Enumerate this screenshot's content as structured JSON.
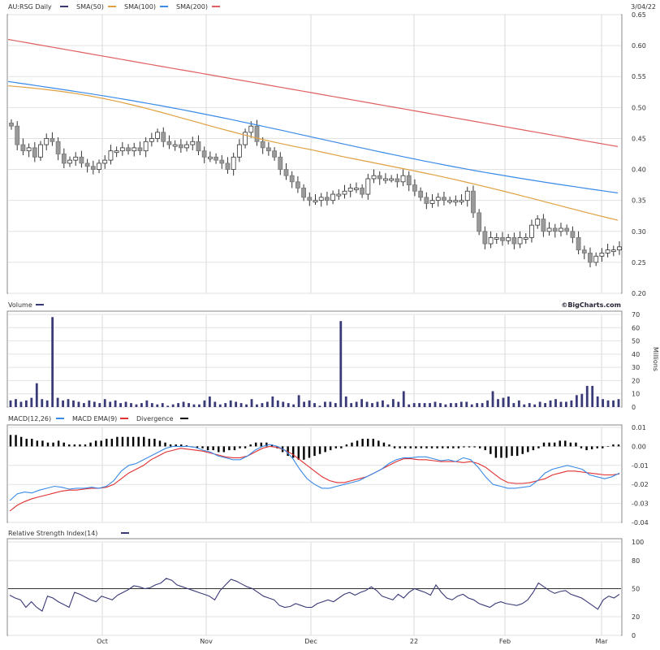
{
  "header": {
    "date": "3/04/22"
  },
  "legend_price": [
    {
      "label": "AU:RSG Daily",
      "color": "#3a3a78"
    },
    {
      "label": "SMA(50)",
      "color": "#e0a040"
    },
    {
      "label": "SMA(100)",
      "color": "#3a8ae8"
    },
    {
      "label": "SMA(200)",
      "color": "#e06060"
    }
  ],
  "legend_volume": [
    {
      "label": "Volume",
      "color": "#3a3a78"
    }
  ],
  "watermark": "©BigCharts.com",
  "legend_macd": [
    {
      "label": "MACD(12,26)",
      "color": "#3a8ae8"
    },
    {
      "label": "MACD EMA(9)",
      "color": "#e03030"
    },
    {
      "label": "Divergence",
      "color": "#000000"
    }
  ],
  "legend_rsi": [
    {
      "label": "Relative Strength Index(14)",
      "color": "#3a3a78"
    }
  ],
  "x_labels": [
    "Oct",
    "Nov",
    "Dec",
    "22",
    "Feb",
    "Mar"
  ],
  "chart_data": [
    {
      "type": "candlestick",
      "title": "AU:RSG Daily",
      "ylim": [
        0.2,
        0.65
      ],
      "yticks": [
        "0.65",
        "0.60",
        "0.55",
        "0.50",
        "0.45",
        "0.40",
        "0.35",
        "0.30",
        "0.25",
        "0.20"
      ],
      "close": [
        0.47,
        0.44,
        0.43,
        0.435,
        0.42,
        0.44,
        0.45,
        0.445,
        0.425,
        0.41,
        0.415,
        0.42,
        0.41,
        0.405,
        0.4,
        0.41,
        0.415,
        0.43,
        0.43,
        0.435,
        0.43,
        0.435,
        0.43,
        0.445,
        0.45,
        0.46,
        0.445,
        0.44,
        0.44,
        0.435,
        0.44,
        0.445,
        0.43,
        0.42,
        0.42,
        0.415,
        0.41,
        0.4,
        0.42,
        0.44,
        0.46,
        0.47,
        0.445,
        0.435,
        0.43,
        0.42,
        0.4,
        0.39,
        0.38,
        0.37,
        0.355,
        0.35,
        0.35,
        0.355,
        0.35,
        0.36,
        0.36,
        0.365,
        0.37,
        0.37,
        0.36,
        0.385,
        0.39,
        0.385,
        0.385,
        0.385,
        0.38,
        0.39,
        0.375,
        0.365,
        0.355,
        0.345,
        0.35,
        0.355,
        0.35,
        0.35,
        0.35,
        0.35,
        0.365,
        0.33,
        0.3,
        0.28,
        0.29,
        0.29,
        0.285,
        0.29,
        0.28,
        0.29,
        0.29,
        0.31,
        0.32,
        0.3,
        0.305,
        0.3,
        0.305,
        0.3,
        0.29,
        0.27,
        0.265,
        0.25,
        0.26,
        0.265,
        0.27,
        0.27,
        0.275
      ],
      "series": [
        {
          "name": "SMA(50)",
          "start": 0.535,
          "end": 0.318
        },
        {
          "name": "SMA(100)",
          "start": 0.542,
          "end": 0.362
        },
        {
          "name": "SMA(200)",
          "start": 0.61,
          "end": 0.437
        }
      ]
    },
    {
      "type": "bar",
      "title": "Volume",
      "ylabel": "Millions",
      "ylim": [
        0,
        70
      ],
      "yticks": [
        "70",
        "60",
        "50",
        "40",
        "30",
        "20",
        "10",
        "0"
      ],
      "values": [
        5,
        6,
        4,
        5,
        7,
        18,
        6,
        5,
        68,
        7,
        5,
        6,
        5,
        4,
        3,
        5,
        4,
        3,
        6,
        4,
        5,
        3,
        4,
        3,
        2,
        3,
        5,
        3,
        2,
        3,
        1,
        2,
        3,
        4,
        3,
        2,
        2,
        5,
        8,
        4,
        2,
        3,
        5,
        4,
        3,
        2,
        6,
        2,
        3,
        4,
        8,
        5,
        4,
        3,
        2,
        9,
        4,
        5,
        3,
        1,
        4,
        4,
        3,
        65,
        8,
        3,
        4,
        6,
        4,
        3,
        4,
        5,
        2,
        6,
        4,
        12,
        2,
        3,
        3,
        3,
        3,
        4,
        3,
        2,
        3,
        3,
        4,
        4,
        2,
        3,
        3,
        5,
        12,
        6,
        7,
        8,
        3,
        5,
        2,
        3,
        2,
        4,
        3,
        5,
        6,
        4,
        4,
        5,
        9,
        10,
        16,
        16,
        8,
        6,
        5,
        5,
        6
      ]
    },
    {
      "type": "line",
      "title": "MACD(12,26)",
      "ylim": [
        -0.04,
        0.01
      ],
      "yticks": [
        "0.01",
        "0.00",
        "-0.01",
        "-0.02",
        "-0.03",
        "-0.04"
      ],
      "macd": [
        -0.0285,
        -0.025,
        -0.024,
        -0.0245,
        -0.023,
        -0.022,
        -0.021,
        -0.0215,
        -0.0225,
        -0.022,
        -0.022,
        -0.0215,
        -0.022,
        -0.021,
        -0.018,
        -0.013,
        -0.01,
        -0.009,
        -0.007,
        -0.005,
        -0.003,
        -0.001,
        0.0,
        0.0,
        0.0,
        -0.0005,
        -0.002,
        -0.003,
        -0.005,
        -0.006,
        -0.007,
        -0.007,
        -0.005,
        -0.002,
        0.0,
        0.001,
        0.0,
        -0.002,
        -0.006,
        -0.012,
        -0.017,
        -0.02,
        -0.022,
        -0.022,
        -0.021,
        -0.02,
        -0.019,
        -0.018,
        -0.016,
        -0.014,
        -0.012,
        -0.009,
        -0.007,
        -0.006,
        -0.006,
        -0.0055,
        -0.0055,
        -0.0065,
        -0.0075,
        -0.007,
        -0.008,
        -0.006,
        -0.007,
        -0.011,
        -0.016,
        -0.02,
        -0.021,
        -0.022,
        -0.022,
        -0.0215,
        -0.021,
        -0.018,
        -0.014,
        -0.012,
        -0.011,
        -0.01,
        -0.011,
        -0.012,
        -0.015,
        -0.016,
        -0.017,
        -0.016,
        -0.014
      ],
      "signal": [
        -0.034,
        -0.031,
        -0.029,
        -0.0275,
        -0.0265,
        -0.0255,
        -0.0245,
        -0.0235,
        -0.023,
        -0.023,
        -0.0225,
        -0.022,
        -0.022,
        -0.0215,
        -0.02,
        -0.017,
        -0.014,
        -0.012,
        -0.01,
        -0.007,
        -0.005,
        -0.003,
        -0.002,
        -0.001,
        -0.0015,
        -0.002,
        -0.0025,
        -0.0035,
        -0.0045,
        -0.0055,
        -0.006,
        -0.006,
        -0.005,
        -0.003,
        -0.001,
        0.0,
        -0.0005,
        -0.002,
        -0.004,
        -0.007,
        -0.01,
        -0.013,
        -0.016,
        -0.018,
        -0.019,
        -0.019,
        -0.018,
        -0.017,
        -0.016,
        -0.014,
        -0.012,
        -0.01,
        -0.008,
        -0.0065,
        -0.0065,
        -0.007,
        -0.007,
        -0.0075,
        -0.008,
        -0.008,
        -0.008,
        -0.0085,
        -0.008,
        -0.009,
        -0.011,
        -0.014,
        -0.017,
        -0.019,
        -0.0195,
        -0.0195,
        -0.019,
        -0.018,
        -0.017,
        -0.015,
        -0.014,
        -0.013,
        -0.013,
        -0.0135,
        -0.014,
        -0.0145,
        -0.015,
        -0.015,
        -0.0145
      ],
      "divergence": [
        0.006,
        0.006,
        0.005,
        0.004,
        0.004,
        0.003,
        0.003,
        0.002,
        0.002,
        0.003,
        0.002,
        0.001,
        0.001,
        0.001,
        0.001,
        0.002,
        0.003,
        0.003,
        0.004,
        0.004,
        0.005,
        0.005,
        0.005,
        0.005,
        0.005,
        0.005,
        0.004,
        0.004,
        0.003,
        0.002,
        0.001,
        0.001,
        0.001,
        0.0005,
        -0.0005,
        -0.001,
        -0.001,
        -0.002,
        -0.002,
        -0.003,
        -0.003,
        -0.002,
        -0.002,
        -0.001,
        -0.001,
        0.001,
        0.002,
        0.002,
        0.002,
        0.001,
        -0.001,
        -0.003,
        -0.005,
        -0.006,
        -0.007,
        -0.007,
        -0.006,
        -0.005,
        -0.004,
        -0.003,
        -0.002,
        -0.001,
        -0.001,
        0.001,
        0.002,
        0.003,
        0.004,
        0.004,
        0.004,
        0.003,
        0.002,
        0.001,
        -0.001,
        -0.001,
        -0.001,
        -0.001,
        -0.001,
        -0.001,
        -0.001,
        -0.001,
        -0.001,
        -0.001,
        -0.001,
        -0.001,
        -0.001,
        -0.0005,
        -0.0005,
        -0.0005,
        -0.001,
        -0.002,
        -0.004,
        -0.006,
        -0.006,
        -0.006,
        -0.005,
        -0.005,
        -0.004,
        -0.003,
        -0.002,
        -0.001,
        0.002,
        0.002,
        0.002,
        0.003,
        0.003,
        0.002,
        0.002,
        -0.001,
        -0.002,
        -0.0015,
        -0.001,
        -0.001,
        0.0,
        0.001,
        0.001
      ]
    },
    {
      "type": "line",
      "title": "Relative Strength Index(14)",
      "ylim": [
        0,
        100
      ],
      "yticks": [
        "100",
        "80",
        "50",
        "20",
        "0"
      ],
      "reference": 50,
      "values": [
        43,
        40,
        38,
        30,
        36,
        30,
        26,
        42,
        40,
        36,
        33,
        30,
        46,
        44,
        41,
        38,
        36,
        42,
        40,
        38,
        43,
        46,
        49,
        53,
        52,
        50,
        51,
        54,
        56,
        61,
        59,
        54,
        52,
        50,
        48,
        46,
        44,
        42,
        38,
        48,
        54,
        60,
        58,
        55,
        52,
        50,
        46,
        42,
        40,
        38,
        32,
        30,
        31,
        34,
        32,
        30,
        30,
        34,
        36,
        38,
        36,
        40,
        44,
        46,
        43,
        46,
        48,
        52,
        48,
        42,
        40,
        38,
        44,
        40,
        46,
        50,
        48,
        46,
        43,
        54,
        46,
        40,
        38,
        42,
        44,
        40,
        38,
        34,
        32,
        30,
        34,
        36,
        34,
        33,
        32,
        34,
        38,
        46,
        56,
        52,
        48,
        45,
        47,
        48,
        44,
        42,
        40,
        36,
        32,
        28,
        38,
        42,
        40,
        44
      ]
    }
  ]
}
